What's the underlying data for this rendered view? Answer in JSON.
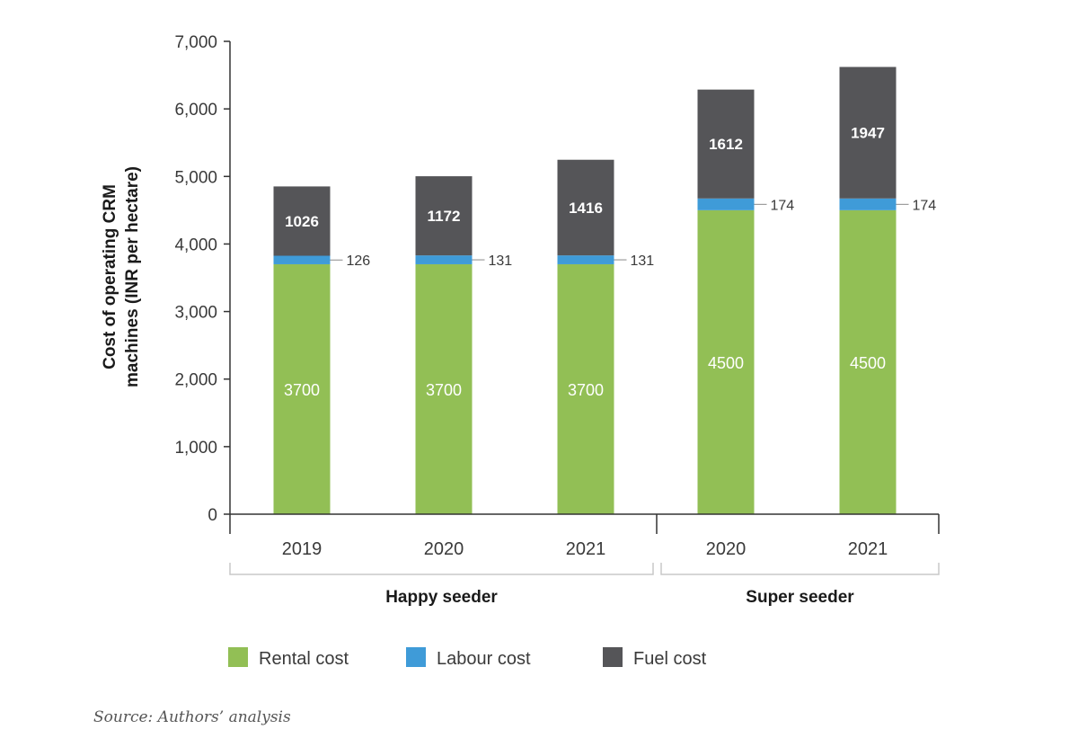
{
  "chart_data": {
    "type": "bar",
    "stacked": true,
    "categories": [
      "2019",
      "2020",
      "2021",
      "2020",
      "2021"
    ],
    "groups": [
      {
        "label": "Happy seeder",
        "categories": [
          "2019",
          "2020",
          "2021"
        ]
      },
      {
        "label": "Super seeder",
        "categories": [
          "2020",
          "2021"
        ]
      }
    ],
    "series": [
      {
        "name": "Rental cost",
        "color": "#92bf55",
        "values": [
          3700,
          3700,
          3700,
          4500,
          4500
        ]
      },
      {
        "name": "Labour cost",
        "color": "#3f9bd8",
        "values": [
          126,
          131,
          131,
          174,
          174
        ]
      },
      {
        "name": "Fuel cost",
        "color": "#555558",
        "values": [
          1026,
          1172,
          1416,
          1612,
          1947
        ]
      }
    ],
    "ylabel_lines": [
      "Cost of operating CRM",
      "machines (INR per hectare)"
    ],
    "ylim": [
      0,
      7000
    ],
    "yticks": [
      0,
      1000,
      2000,
      3000,
      4000,
      5000,
      6000,
      7000
    ],
    "ytick_labels": [
      "0",
      "1,000",
      "2,000",
      "3,000",
      "4,000",
      "5,000",
      "6,000",
      "7,000"
    ],
    "grid": false,
    "legend_position": "bottom"
  },
  "source_note": "Source: Authors’ analysis"
}
